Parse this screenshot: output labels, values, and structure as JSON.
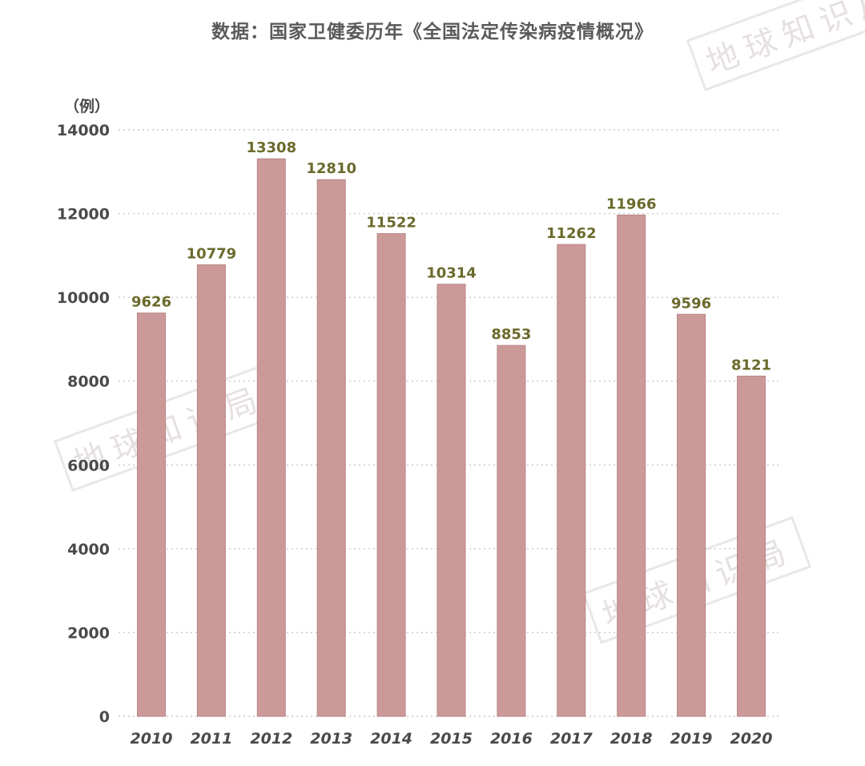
{
  "chart_data": {
    "type": "bar",
    "title": "数据：国家卫健委历年《全国法定传染病疫情概况》",
    "ylabel": "（例）",
    "xlabel": "",
    "ylim": [
      0,
      14000
    ],
    "yticks": [
      0,
      2000,
      4000,
      6000,
      8000,
      10000,
      12000,
      14000
    ],
    "grid": true,
    "categories": [
      "2010",
      "2011",
      "2012",
      "2013",
      "2014",
      "2015",
      "2016",
      "2017",
      "2018",
      "2019",
      "2020"
    ],
    "values": [
      9626,
      10779,
      13308,
      12810,
      11522,
      10314,
      8853,
      11262,
      11966,
      9596,
      8121
    ],
    "data_labels": [
      "9626",
      "10779",
      "13308",
      "12810",
      "11522",
      "10314",
      "8853",
      "11262",
      "11966",
      "9596",
      "8121"
    ]
  },
  "watermark": "地球知识局",
  "colors": {
    "bar": "#cc9999",
    "bar_edge": "#b98585",
    "data_label": "#6b6a2c",
    "axis_text": "#4a4a4a",
    "grid": "#c9c9c9"
  }
}
